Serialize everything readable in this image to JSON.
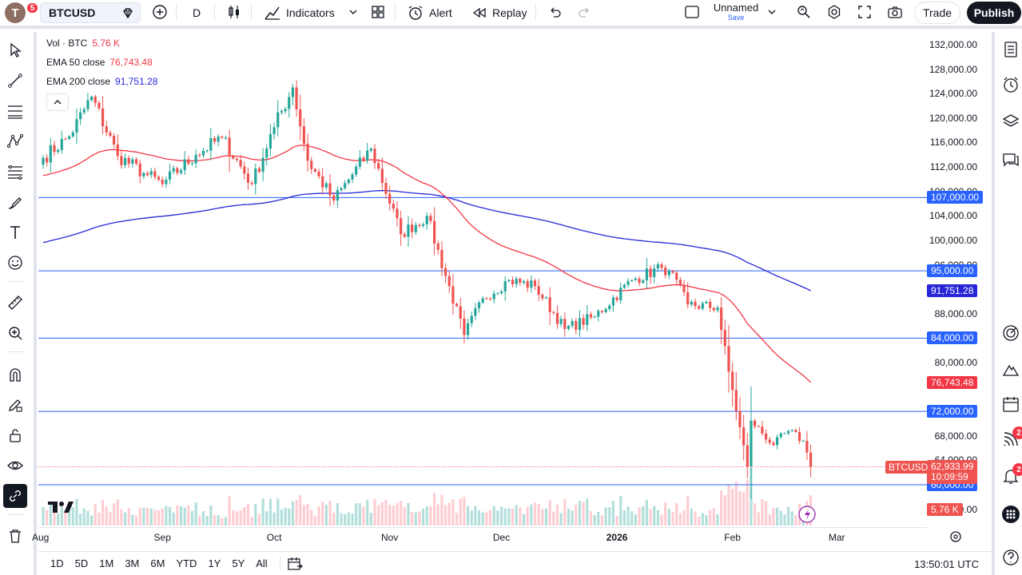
{
  "header": {
    "avatar_letter": "T",
    "avatar_badge": "5",
    "symbol": "BTCUSD",
    "interval": "D",
    "indicators_label": "Indicators",
    "alert_label": "Alert",
    "replay_label": "Replay",
    "layout_name": "Unnamed",
    "layout_save": "Save",
    "trade_label": "Trade",
    "publish_label": "Publish"
  },
  "legend": {
    "vol_label": "Vol · BTC",
    "vol_value": "5.76 K",
    "ema50_label": "EMA 50 close",
    "ema50_value": "76,743.48",
    "ema200_label": "EMA 200 close",
    "ema200_value": "91,751.28"
  },
  "colors": {
    "up": "#26a69a",
    "down": "#ef5350",
    "ema50": "#f23645",
    "ema200": "#2727d8",
    "hline": "#2962ff",
    "vol_up": "#b2dfdb",
    "vol_down": "#ffcdd2"
  },
  "price_axis": {
    "ticks": [
      "132,000.00",
      "128,000.00",
      "124,000.00",
      "120,000.00",
      "116,000.00",
      "112,000.00",
      "108,000.00",
      "104,000.00",
      "100,000.00",
      "96,000.00",
      "88,000.00",
      "80,000.00",
      "68,000.00",
      "64,000.00",
      "60,000.00",
      "56,000.00"
    ],
    "labels": {
      "h107": "107,000.00",
      "h95": "95,000.00",
      "ema200": "91,751.28",
      "h84": "84,000.00",
      "ema50": "76,743.48",
      "h72": "72,000.00",
      "last_symbol": "BTCUSD",
      "last_price": "62,933.99",
      "countdown": "10:09:59",
      "h60": "60,000.00",
      "vol": "5.76 K"
    }
  },
  "time_axis": {
    "ticks": [
      "Aug",
      "Sep",
      "Oct",
      "Nov",
      "Dec",
      "2026",
      "Feb",
      "Mar"
    ]
  },
  "bottom": {
    "ranges": [
      "1D",
      "5D",
      "1M",
      "3M",
      "6M",
      "YTD",
      "1Y",
      "5Y",
      "All"
    ],
    "clock": "13:50:01 UTC"
  },
  "right_badges": {
    "ideas": "2",
    "notifications": "2"
  },
  "chart_data": {
    "type": "candlestick",
    "symbol": "BTCUSD",
    "interval": "D",
    "x_start": "2025-07-31",
    "y_range": [
      54000,
      134000
    ],
    "horizontal_lines": [
      107000,
      95000,
      84000,
      72000,
      60000
    ],
    "last_price": 62933.99,
    "ema50_last": 76743.48,
    "ema200_last": 91751.28,
    "volume_last": "5.76 K",
    "close_anchors": [
      [
        "2025-07-31",
        113500
      ],
      [
        "2025-08-07",
        117000
      ],
      [
        "2025-08-13",
        123500
      ],
      [
        "2025-08-20",
        113800
      ],
      [
        "2025-08-27",
        111000
      ],
      [
        "2025-09-01",
        109200
      ],
      [
        "2025-09-10",
        114000
      ],
      [
        "2025-09-17",
        116800
      ],
      [
        "2025-09-25",
        109200
      ],
      [
        "2025-10-01",
        118500
      ],
      [
        "2025-10-06",
        125000
      ],
      [
        "2025-10-10",
        113000
      ],
      [
        "2025-10-17",
        106500
      ],
      [
        "2025-10-27",
        115000
      ],
      [
        "2025-11-04",
        101000
      ],
      [
        "2025-11-11",
        104000
      ],
      [
        "2025-11-21",
        84500
      ],
      [
        "2025-11-26",
        90500
      ],
      [
        "2025-12-03",
        93500
      ],
      [
        "2025-12-10",
        92500
      ],
      [
        "2025-12-18",
        85500
      ],
      [
        "2025-12-26",
        87500
      ],
      [
        "2026-01-05",
        93500
      ],
      [
        "2026-01-13",
        95500
      ],
      [
        "2026-01-15",
        95000
      ],
      [
        "2026-01-20",
        89500
      ],
      [
        "2026-01-28",
        89000
      ],
      [
        "2026-01-31",
        78500
      ],
      [
        "2026-02-05",
        63000
      ],
      [
        "2026-02-06",
        70500
      ],
      [
        "2026-02-12",
        66500
      ],
      [
        "2026-02-16",
        68800
      ],
      [
        "2026-02-20",
        67200
      ],
      [
        "2026-02-22",
        62934
      ]
    ]
  }
}
